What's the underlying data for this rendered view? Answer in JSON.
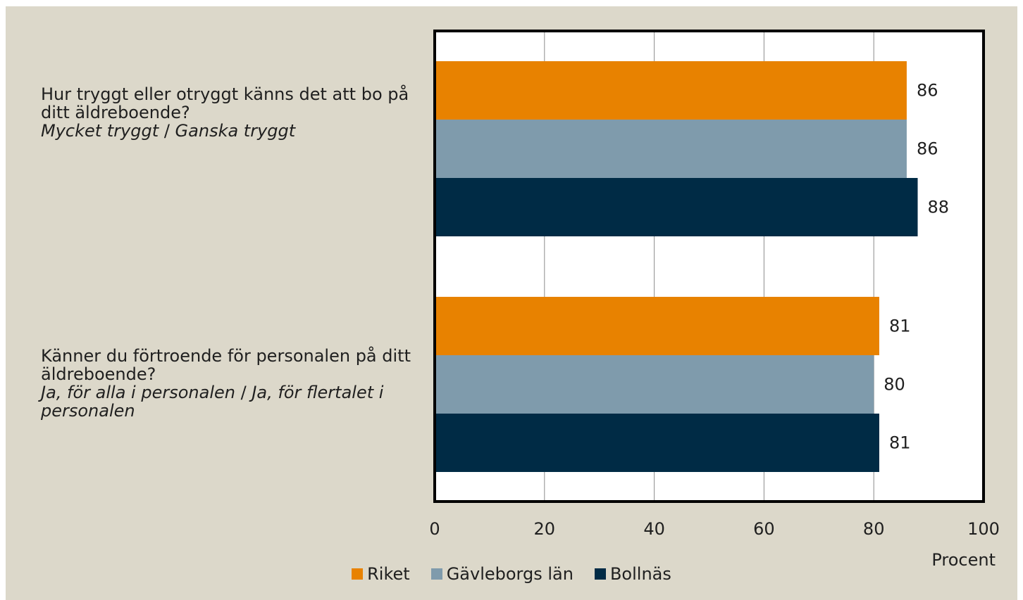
{
  "chart_data": {
    "type": "bar",
    "orientation": "horizontal",
    "categories": [
      {
        "question": "Hur tryggt eller otryggt känns det att bo på ditt äldreboende?",
        "answer_parts": [
          "Mycket tryggt",
          "Ganska tryggt"
        ],
        "separator": "/"
      },
      {
        "question": "Känner du förtroende för personalen på ditt äldreboende?",
        "answer_parts": [
          "Ja, för alla i personalen",
          "Ja, för flertalet i personalen"
        ],
        "separator": "/"
      }
    ],
    "series": [
      {
        "name": "Riket",
        "color": "#e88200",
        "values": [
          86,
          81
        ]
      },
      {
        "name": "Gävleborgs län",
        "color": "#7f9bac",
        "values": [
          86,
          80
        ]
      },
      {
        "name": "Bollnäs",
        "color": "#002b45",
        "values": [
          88,
          81
        ]
      }
    ],
    "xlabel": "Procent",
    "xlim": [
      0,
      100
    ],
    "xticks": [
      0,
      20,
      40,
      60,
      80,
      100
    ],
    "grid": true,
    "legend_position": "bottom"
  }
}
